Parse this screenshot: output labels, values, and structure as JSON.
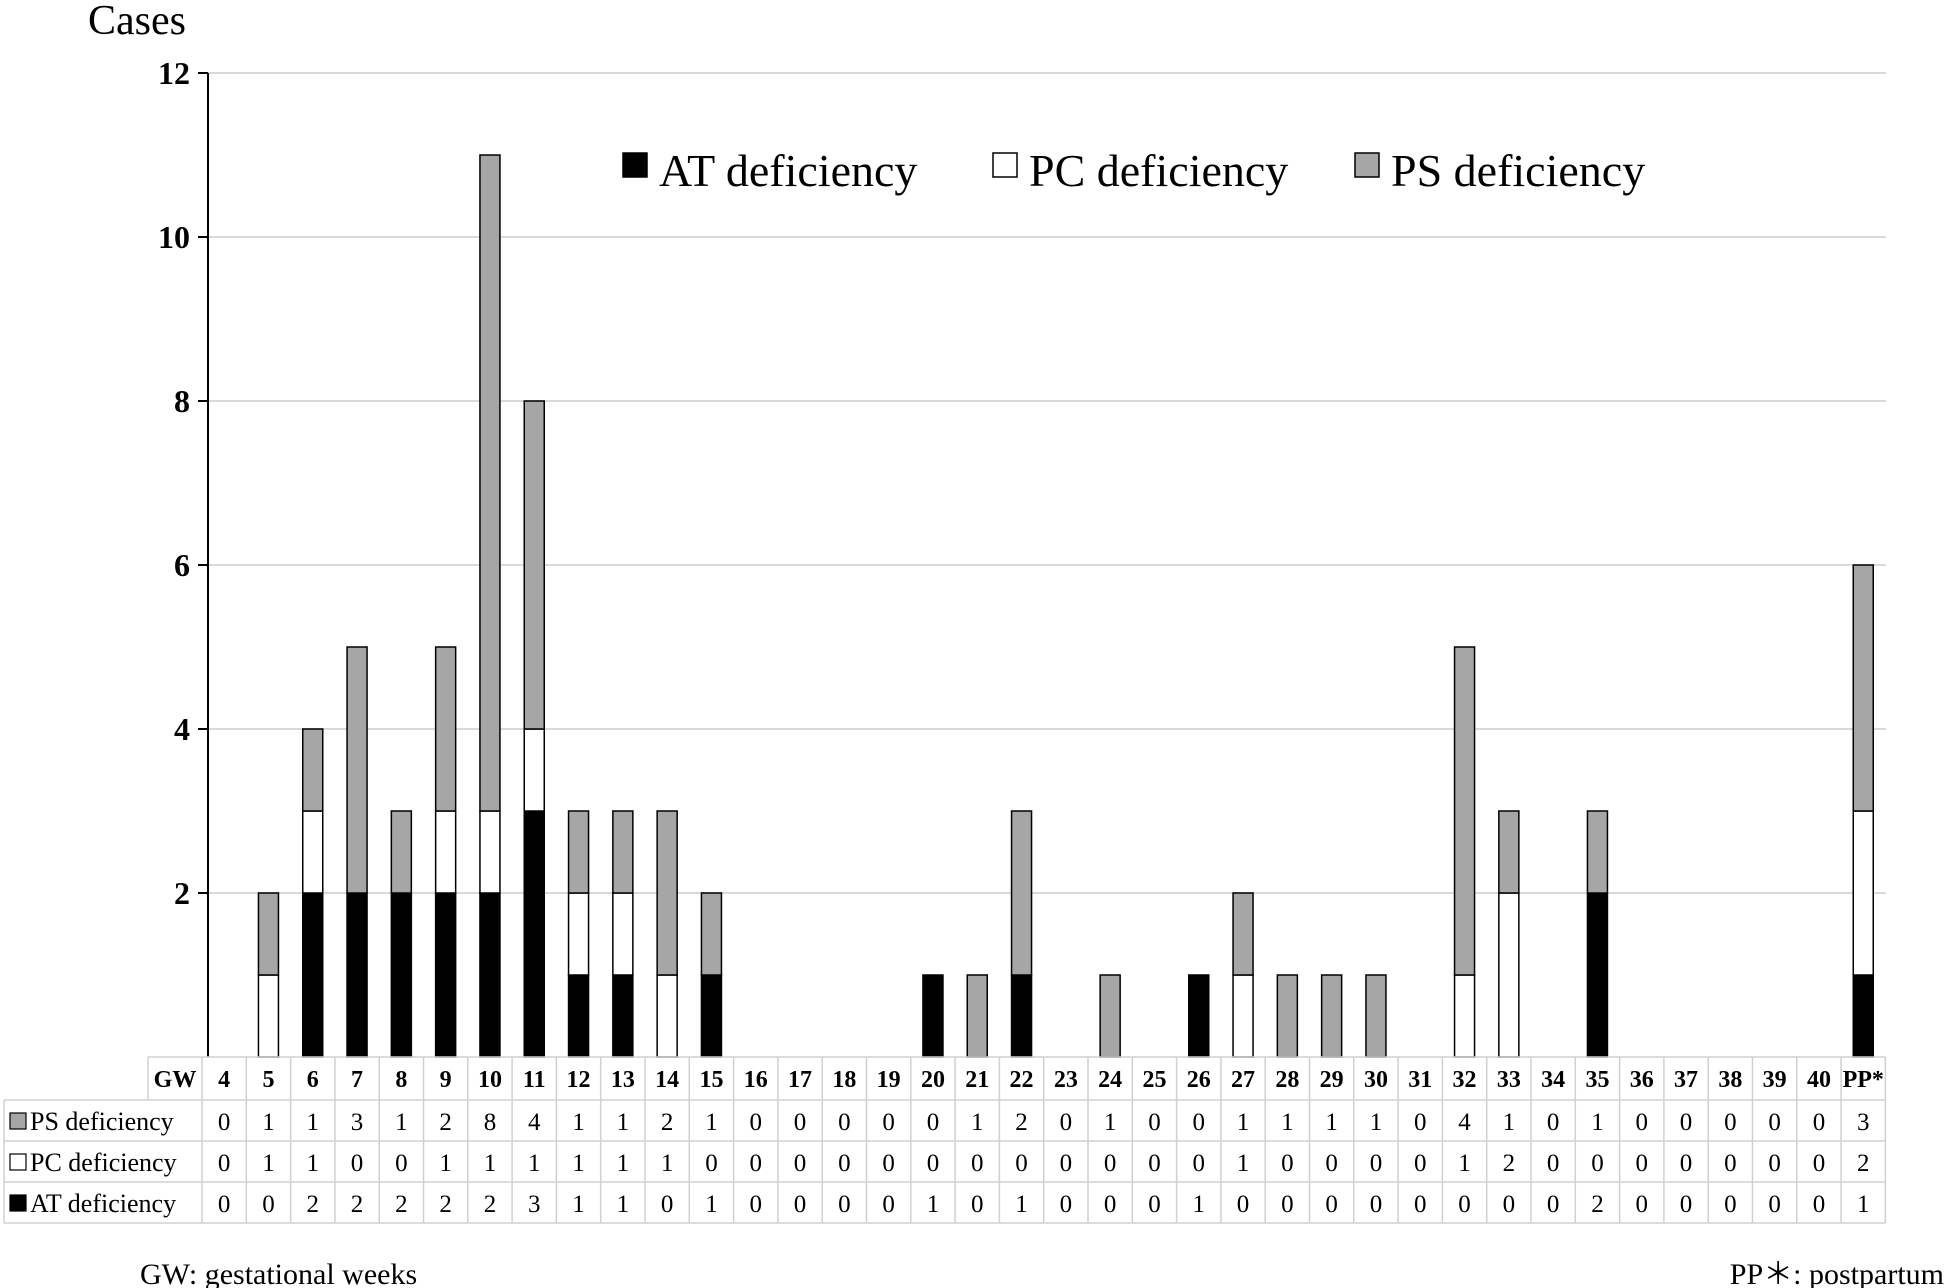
{
  "chart_data": {
    "type": "bar",
    "stacked": true,
    "ylabel": "Cases",
    "ylim": [
      0,
      12
    ],
    "yticks": [
      2,
      4,
      6,
      8,
      10,
      12
    ],
    "grid": true,
    "legend_position": "top-right",
    "x_header": "GW",
    "categories": [
      "4",
      "5",
      "6",
      "7",
      "8",
      "9",
      "10",
      "11",
      "12",
      "13",
      "14",
      "15",
      "16",
      "17",
      "18",
      "19",
      "20",
      "21",
      "22",
      "23",
      "24",
      "25",
      "26",
      "27",
      "28",
      "29",
      "30",
      "31",
      "32",
      "33",
      "34",
      "35",
      "36",
      "37",
      "38",
      "39",
      "40",
      "PP*"
    ],
    "series": [
      {
        "name": "AT deficiency",
        "color": "#000000",
        "values": [
          0,
          0,
          2,
          2,
          2,
          2,
          2,
          3,
          1,
          1,
          0,
          1,
          0,
          0,
          0,
          0,
          1,
          0,
          1,
          0,
          0,
          0,
          1,
          0,
          0,
          0,
          0,
          0,
          0,
          0,
          0,
          2,
          0,
          0,
          0,
          0,
          0,
          1
        ]
      },
      {
        "name": "PC deficiency",
        "color": "#ffffff",
        "values": [
          0,
          1,
          1,
          0,
          0,
          1,
          1,
          1,
          1,
          1,
          1,
          0,
          0,
          0,
          0,
          0,
          0,
          0,
          0,
          0,
          0,
          0,
          0,
          1,
          0,
          0,
          0,
          0,
          1,
          2,
          0,
          0,
          0,
          0,
          0,
          0,
          0,
          2
        ]
      },
      {
        "name": "PS deficiency",
        "color": "#a6a6a6",
        "values": [
          0,
          1,
          1,
          3,
          1,
          2,
          8,
          4,
          1,
          1,
          2,
          1,
          0,
          0,
          0,
          0,
          0,
          1,
          2,
          0,
          1,
          0,
          0,
          1,
          1,
          1,
          1,
          0,
          4,
          1,
          0,
          1,
          0,
          0,
          0,
          0,
          0,
          3
        ]
      }
    ],
    "table_row_order": [
      "PS deficiency",
      "PC deficiency",
      "AT deficiency"
    ],
    "notes": {
      "left": "GW: gestational weeks",
      "right": "PP＊: postpartum"
    }
  }
}
